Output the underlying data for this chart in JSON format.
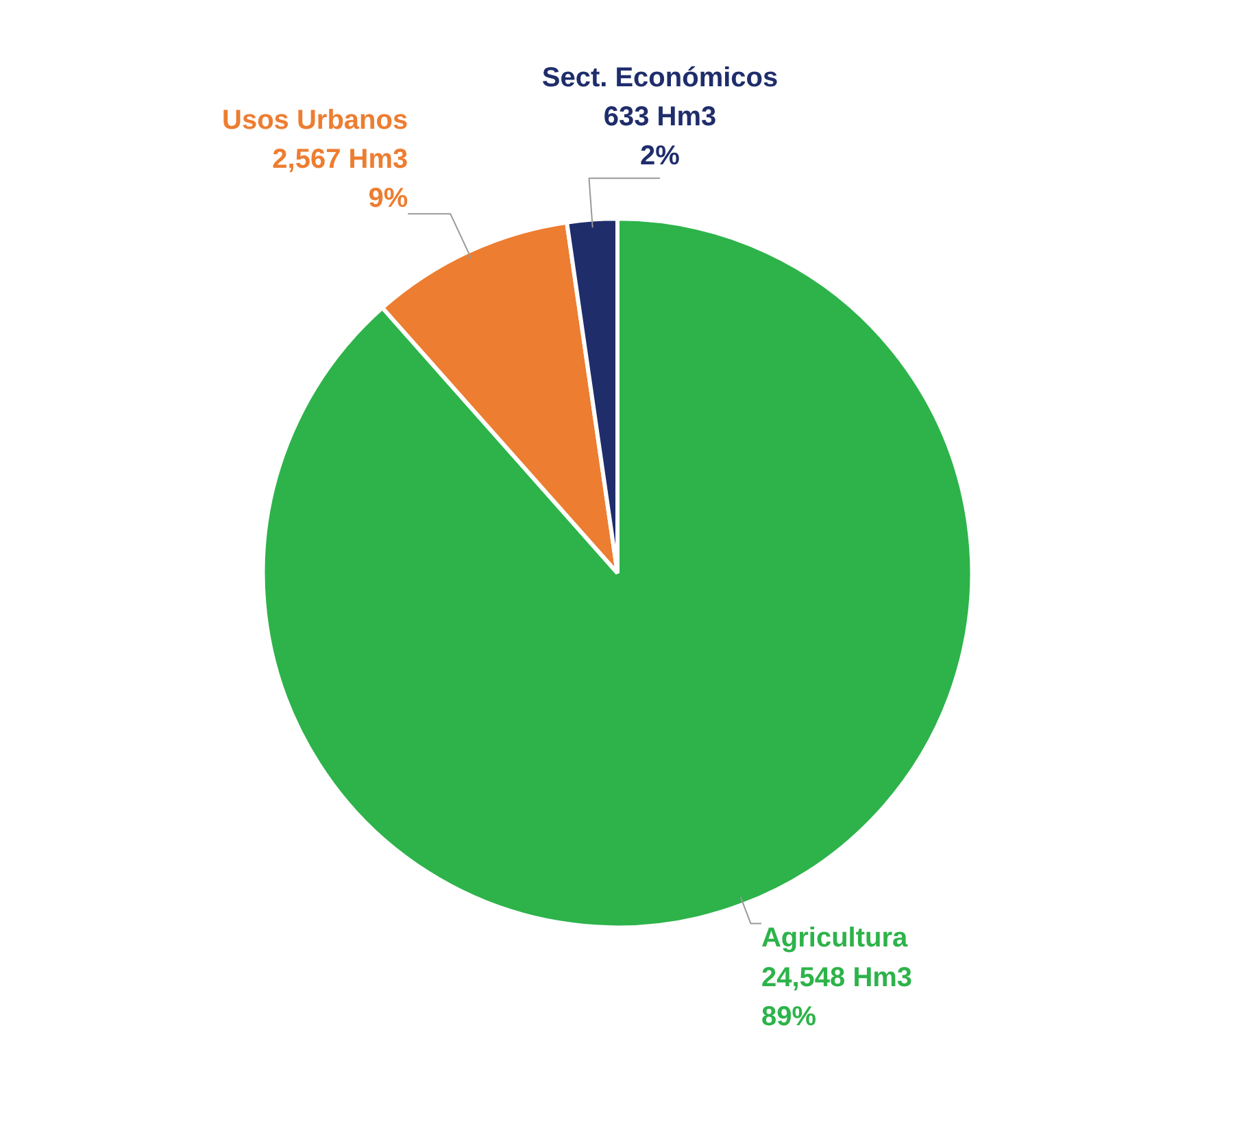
{
  "chart_data": {
    "type": "pie",
    "categories": [
      "Agricultura",
      "Usos Urbanos",
      "Sect. Económicos"
    ],
    "values": [
      24548,
      2567,
      633
    ],
    "colors": [
      "#2db34a",
      "#ed7d31",
      "#1f2d6b"
    ],
    "value_labels": [
      "24,548 Hm3\n89%",
      "2,567 Hm3\n9%",
      "633 Hm3\n2%"
    ]
  }
}
